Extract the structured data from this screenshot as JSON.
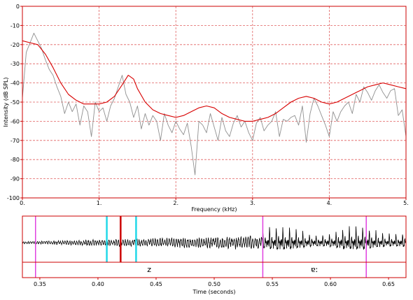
{
  "colors": {
    "frame": "#cc0000",
    "grid": "#e06060",
    "spectrum": "#909090",
    "envelope": "#d80000",
    "waveform": "#000000",
    "cursor_cyan": "#22d8e8",
    "cursor_magenta": "#e040e0",
    "cursor_red": "#cc0000"
  },
  "chart_data": [
    {
      "type": "line",
      "title": "",
      "xlabel": "Frequency (kHz)",
      "ylabel": "Intensity (dB SPL)",
      "xlim": [
        0,
        5
      ],
      "ylim": [
        -100,
        0
      ],
      "grid": true,
      "x_tick_labels": [
        "0.",
        "1.",
        "2.",
        "3.",
        "4.",
        "5."
      ],
      "y_tick_labels": [
        "0",
        "-10",
        "-20",
        "-30",
        "-40",
        "-50",
        "-60",
        "-70",
        "-80",
        "-90",
        "-100"
      ],
      "series": [
        {
          "role": "spectrum",
          "x": [
            0,
            0.05,
            0.1,
            0.15,
            0.2,
            0.25,
            0.3,
            0.35,
            0.4,
            0.45,
            0.5,
            0.55,
            0.6,
            0.65,
            0.7,
            0.75,
            0.8,
            0.85,
            0.9,
            0.95,
            1.0,
            1.05,
            1.1,
            1.15,
            1.2,
            1.25,
            1.3,
            1.35,
            1.4,
            1.45,
            1.5,
            1.55,
            1.6,
            1.65,
            1.7,
            1.75,
            1.8,
            1.85,
            1.9,
            1.95,
            2.0,
            2.05,
            2.1,
            2.15,
            2.2,
            2.25,
            2.3,
            2.35,
            2.4,
            2.45,
            2.5,
            2.55,
            2.6,
            2.65,
            2.7,
            2.75,
            2.8,
            2.85,
            2.9,
            2.95,
            3.0,
            3.05,
            3.1,
            3.15,
            3.2,
            3.25,
            3.3,
            3.35,
            3.4,
            3.45,
            3.5,
            3.55,
            3.6,
            3.65,
            3.7,
            3.75,
            3.8,
            3.85,
            3.9,
            3.95,
            4.0,
            4.05,
            4.1,
            4.15,
            4.2,
            4.25,
            4.3,
            4.35,
            4.4,
            4.45,
            4.5,
            4.55,
            4.6,
            4.65,
            4.7,
            4.75,
            4.8,
            4.85,
            4.9,
            4.95,
            5.0
          ],
          "values": [
            -48,
            -24,
            -19,
            -14,
            -18,
            -22,
            -28,
            -33,
            -36,
            -42,
            -47,
            -56,
            -50,
            -55,
            -51,
            -62,
            -52,
            -55,
            -68,
            -50,
            -55,
            -53,
            -60,
            -52,
            -48,
            -42,
            -36,
            -46,
            -50,
            -58,
            -52,
            -64,
            -56,
            -62,
            -57,
            -60,
            -70,
            -56,
            -62,
            -66,
            -60,
            -64,
            -67,
            -61,
            -73,
            -88,
            -60,
            -62,
            -66,
            -56,
            -63,
            -70,
            -58,
            -65,
            -68,
            -61,
            -57,
            -63,
            -60,
            -66,
            -70,
            -61,
            -58,
            -65,
            -62,
            -60,
            -55,
            -68,
            -59,
            -60,
            -58,
            -57,
            -62,
            -52,
            -71,
            -56,
            -48,
            -52,
            -57,
            -62,
            -68,
            -55,
            -60,
            -55,
            -52,
            -50,
            -56,
            -46,
            -50,
            -42,
            -45,
            -49,
            -44,
            -41,
            -45,
            -48,
            -44,
            -43,
            -57,
            -54,
            -68
          ]
        },
        {
          "role": "envelope",
          "x": [
            0,
            0.1,
            0.2,
            0.3,
            0.4,
            0.5,
            0.6,
            0.7,
            0.8,
            0.9,
            1.0,
            1.1,
            1.2,
            1.3,
            1.38,
            1.45,
            1.5,
            1.6,
            1.7,
            1.8,
            1.9,
            2.0,
            2.1,
            2.2,
            2.3,
            2.4,
            2.5,
            2.6,
            2.7,
            2.8,
            2.9,
            3.0,
            3.1,
            3.2,
            3.3,
            3.4,
            3.5,
            3.6,
            3.7,
            3.8,
            3.9,
            4.0,
            4.1,
            4.2,
            4.3,
            4.4,
            4.5,
            4.6,
            4.7,
            4.8,
            4.9,
            5.0
          ],
          "values": [
            -18,
            -19,
            -20,
            -25,
            -32,
            -40,
            -46,
            -49,
            -51,
            -51,
            -51,
            -50,
            -47,
            -41,
            -36,
            -38,
            -43,
            -50,
            -54,
            -56,
            -57,
            -58,
            -57,
            -55,
            -53,
            -52,
            -53,
            -56,
            -58,
            -59,
            -60,
            -60,
            -59,
            -58,
            -56,
            -53,
            -50,
            -48,
            -47,
            -48,
            -50,
            -51,
            -50,
            -48,
            -46,
            -44,
            -42,
            -41,
            -40,
            -41,
            -42,
            -43
          ]
        }
      ]
    },
    {
      "type": "line",
      "title": "",
      "xlabel": "Time (seconds)",
      "ylabel": "",
      "xlim": [
        0.335,
        0.665
      ],
      "x_ticks": [
        0.35,
        0.4,
        0.45,
        0.5,
        0.55,
        0.6,
        0.65
      ],
      "x_tick_labels": [
        "0.35",
        "0.40",
        "0.45",
        "0.50",
        "0.55",
        "0.60",
        "0.65"
      ],
      "segments": [
        {
          "label": "z",
          "start": 0.3463,
          "end": 0.5418
        },
        {
          "label": "ɐː",
          "start": 0.5418,
          "end": 0.6308
        }
      ],
      "cursors": [
        {
          "time": 0.3463,
          "color": "magenta"
        },
        {
          "time": 0.4076,
          "color": "cyan"
        },
        {
          "time": 0.4195,
          "color": "red"
        },
        {
          "time": 0.4328,
          "color": "cyan"
        },
        {
          "time": 0.5418,
          "color": "magenta"
        },
        {
          "time": 0.6308,
          "color": "magenta"
        }
      ]
    }
  ]
}
